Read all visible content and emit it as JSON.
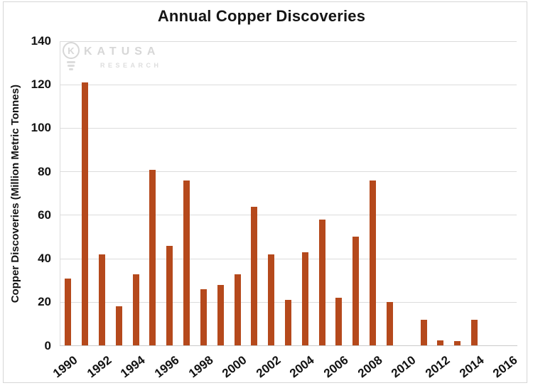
{
  "page": {
    "title": "Annual Copper Discoveries"
  },
  "watermark": {
    "brand": "KATUSA",
    "sub": "RESEARCH",
    "icon": "lightbulb-k-icon"
  },
  "chart_data": {
    "type": "bar",
    "title": "Annual Copper Discoveries",
    "xlabel": "",
    "ylabel": "Copper Discoveries (Million Metric Tonnes)",
    "categories": [
      1990,
      1991,
      1992,
      1993,
      1994,
      1995,
      1996,
      1997,
      1998,
      1999,
      2000,
      2001,
      2002,
      2003,
      2004,
      2005,
      2006,
      2007,
      2008,
      2009,
      2010,
      2011,
      2012,
      2013,
      2014,
      2015,
      2016
    ],
    "values": [
      31,
      121,
      42,
      18,
      33,
      81,
      46,
      76,
      26,
      28,
      33,
      64,
      42,
      21,
      43,
      58,
      22,
      50,
      76,
      20,
      0,
      12,
      2.5,
      2,
      12,
      0,
      0
    ],
    "ylim": [
      0,
      140
    ],
    "yticks": [
      0,
      20,
      40,
      60,
      80,
      100,
      120,
      140
    ],
    "xtick_labels": [
      "1990",
      "1992",
      "1994",
      "1996",
      "1998",
      "2000",
      "2002",
      "2004",
      "2006",
      "2008",
      "2010",
      "2012",
      "2014",
      "2016"
    ],
    "grid": true,
    "legend_position": "none",
    "bar_color": "#b5491c",
    "gridline_color": "#dcdcdc",
    "axis_color": "#c9c9c9",
    "text_color": "#131313",
    "watermark_color": "#d7d7d7"
  }
}
